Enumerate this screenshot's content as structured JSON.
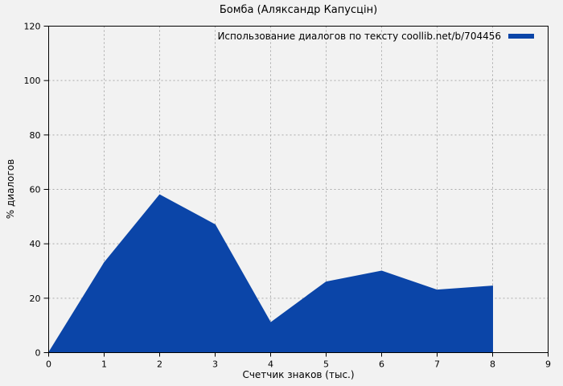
{
  "chart_data": {
    "type": "area",
    "title": "Бомба (Аляксандр Капусцін)",
    "xlabel": "Счетчик знаков (тыс.)",
    "ylabel": "% диалогов",
    "series_name": "Использование диалогов по тексту coollib.net/b/704456",
    "x": [
      0,
      1,
      2,
      3,
      4,
      5,
      6,
      7,
      8
    ],
    "values": [
      0,
      33,
      58,
      47,
      11,
      26,
      30,
      23,
      24.5
    ],
    "xlim": [
      0,
      9
    ],
    "ylim": [
      0,
      120
    ],
    "x_ticks": [
      0,
      1,
      2,
      3,
      4,
      5,
      6,
      7,
      8,
      9
    ],
    "y_ticks": [
      0,
      20,
      40,
      60,
      80,
      100,
      120
    ],
    "grid": true,
    "grid_style": "dashed",
    "legend_position": "top-right-inside",
    "fill_color": "#0b45a8",
    "background_color": "#f2f2f2",
    "grid_color": "#aaaaaa",
    "frame_color": "#000000"
  }
}
